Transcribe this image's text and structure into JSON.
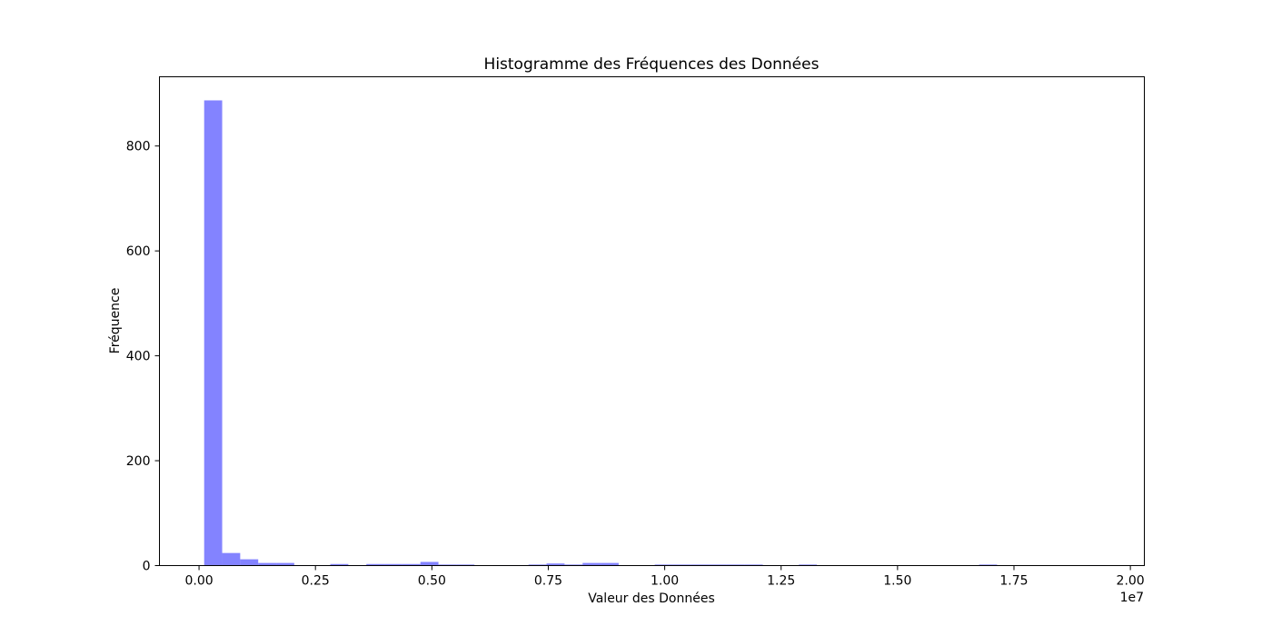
{
  "chart_data": {
    "type": "bar",
    "title": "Histogramme des Fréquences des Données",
    "xlabel": "Valeur des Données",
    "ylabel": "Fréquence",
    "x_offset_text": "1e7",
    "bar_color": "#4f4fff",
    "bar_opacity": 0.7,
    "grid": false,
    "xlim": [
      -0.085,
      2.03
    ],
    "ylim": [
      0,
      932
    ],
    "x_unit_multiplier": 10000000,
    "x_ticks": [
      {
        "value": 0.0,
        "label": "0.00"
      },
      {
        "value": 0.25,
        "label": "0.25"
      },
      {
        "value": 0.5,
        "label": "0.50"
      },
      {
        "value": 0.75,
        "label": "0.75"
      },
      {
        "value": 1.0,
        "label": "1.00"
      },
      {
        "value": 1.25,
        "label": "1.25"
      },
      {
        "value": 1.5,
        "label": "1.50"
      },
      {
        "value": 1.75,
        "label": "1.75"
      },
      {
        "value": 2.0,
        "label": "2.00"
      }
    ],
    "y_ticks": [
      {
        "value": 0,
        "label": "0"
      },
      {
        "value": 200,
        "label": "200"
      },
      {
        "value": 400,
        "label": "400"
      },
      {
        "value": 600,
        "label": "600"
      },
      {
        "value": 800,
        "label": "800"
      }
    ],
    "bin_start": 0.011,
    "bin_width": 0.0387,
    "values": [
      887,
      24,
      12,
      5,
      5,
      1,
      1,
      3,
      1,
      3,
      3,
      3,
      7,
      2,
      2,
      0,
      1,
      1,
      2,
      4,
      2,
      5,
      5,
      0,
      0,
      2,
      2,
      2,
      2,
      2,
      2,
      1,
      0,
      2,
      0,
      0,
      0,
      0,
      0,
      0,
      0,
      0,
      0,
      2,
      0,
      0,
      0,
      0,
      0,
      1
    ]
  }
}
